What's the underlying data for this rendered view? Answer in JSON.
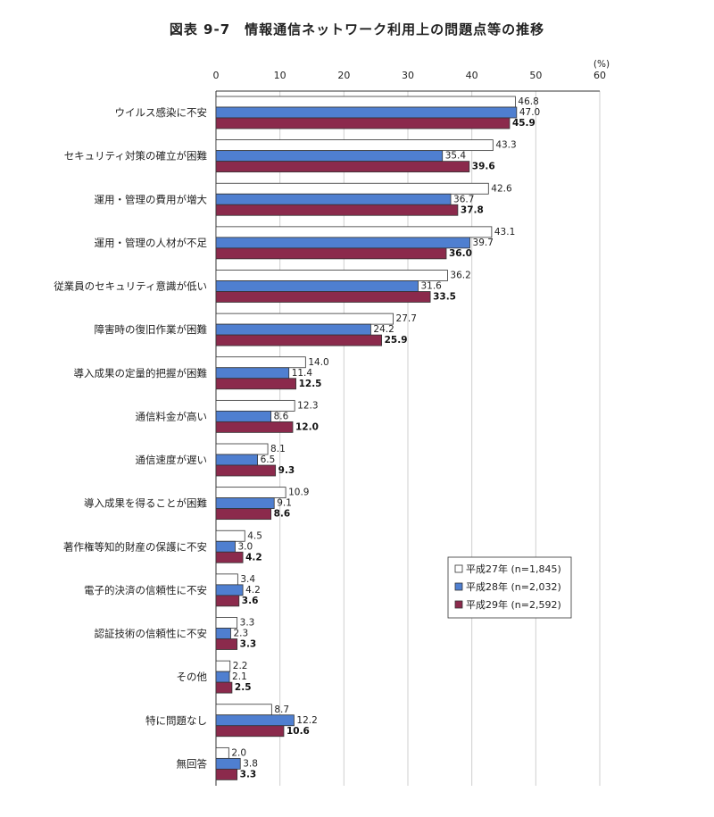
{
  "title": "図表 9-7　情報通信ネットワーク利用上の問題点等の推移",
  "chart_data": {
    "type": "bar",
    "orientation": "horizontal",
    "unit": "(%)",
    "xlim": [
      0,
      60
    ],
    "ticks": [
      0,
      10,
      20,
      30,
      40,
      50,
      60
    ],
    "grid": true,
    "legend_position": "bottom-right",
    "categories": [
      "ウイルス感染に不安",
      "セキュリティ対策の確立が困難",
      "運用・管理の費用が増大",
      "運用・管理の人材が不足",
      "従業員のセキュリティ意識が低い",
      "障害時の復旧作業が困難",
      "導入成果の定量的把握が困難",
      "通信料金が高い",
      "通信速度が遅い",
      "導入成果を得ることが困難",
      "著作権等知的財産の保護に不安",
      "電子的決済の信頼性に不安",
      "認証技術の信頼性に不安",
      "その他",
      "特に問題なし",
      "無回答"
    ],
    "series": [
      {
        "name": "平成27年 (n=1,845)",
        "color": "#ffffff",
        "values": [
          46.8,
          43.3,
          42.6,
          43.1,
          36.2,
          27.7,
          14.0,
          12.3,
          8.1,
          10.9,
          4.5,
          3.4,
          3.3,
          2.2,
          8.7,
          2.0
        ]
      },
      {
        "name": "平成28年 (n=2,032)",
        "color": "#4f7fd0",
        "values": [
          47.0,
          35.4,
          36.7,
          39.7,
          31.6,
          24.2,
          11.4,
          8.6,
          6.5,
          9.1,
          3.0,
          4.2,
          2.3,
          2.1,
          12.2,
          3.8
        ]
      },
      {
        "name": "平成29年 (n=2,592)",
        "color": "#8b2a4c",
        "values": [
          45.9,
          39.6,
          37.8,
          36.0,
          33.5,
          25.9,
          12.5,
          12.0,
          9.3,
          8.6,
          4.2,
          3.6,
          3.3,
          2.5,
          10.6,
          3.3
        ]
      }
    ]
  }
}
